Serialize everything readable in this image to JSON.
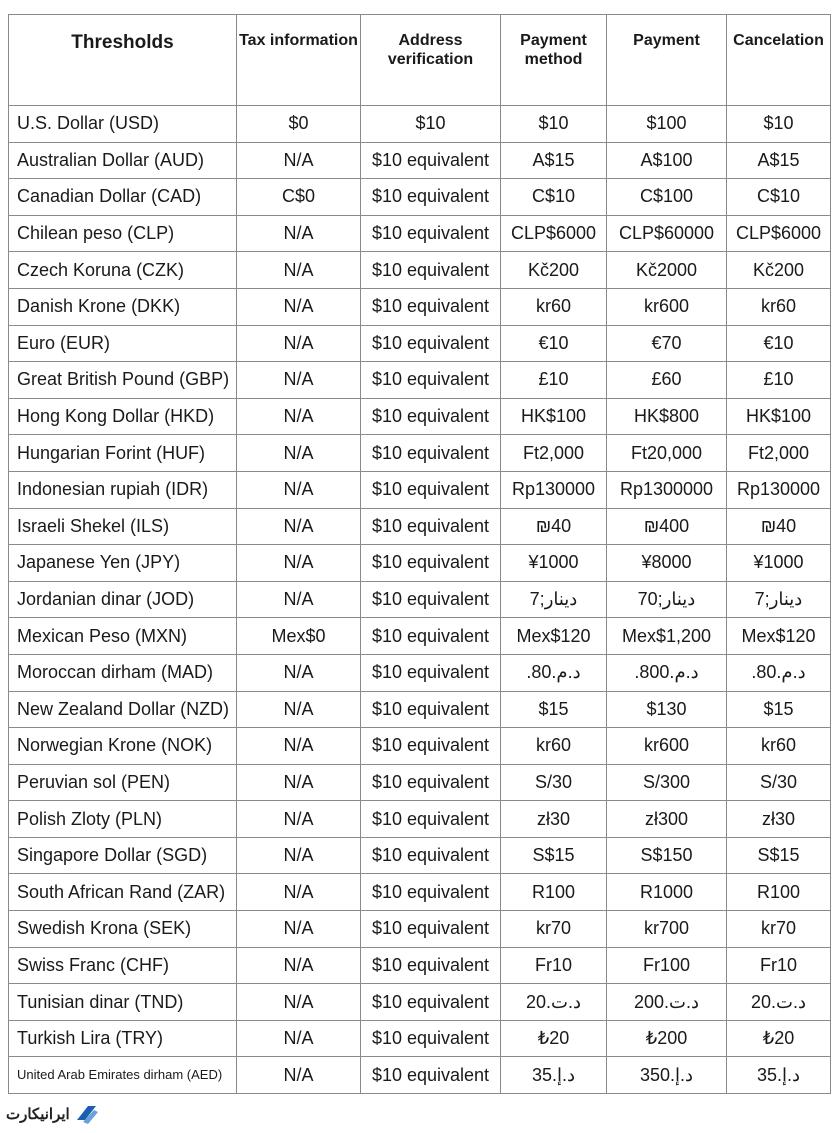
{
  "headers": [
    "Thresholds",
    "Tax information",
    "Address verification",
    "Payment method",
    "Payment",
    "Cancelation"
  ],
  "rows": [
    [
      "U.S. Dollar (USD)",
      "$0",
      "$10",
      "$10",
      "$100",
      "$10"
    ],
    [
      "Australian Dollar (AUD)",
      "N/A",
      "$10 equivalent",
      "A$15",
      "A$100",
      "A$15"
    ],
    [
      "Canadian Dollar (CAD)",
      "C$0",
      "$10 equivalent",
      "C$10",
      "C$100",
      "C$10"
    ],
    [
      "Chilean peso (CLP)",
      "N/A",
      "$10 equivalent",
      "CLP$6000",
      "CLP$60000",
      "CLP$6000"
    ],
    [
      "Czech Koruna (CZK)",
      "N/A",
      "$10 equivalent",
      "Kč200",
      "Kč2000",
      "Kč200"
    ],
    [
      "Danish Krone (DKK)",
      "N/A",
      "$10 equivalent",
      "kr60",
      "kr600",
      "kr60"
    ],
    [
      "Euro (EUR)",
      "N/A",
      "$10 equivalent",
      "€10",
      "€70",
      "€10"
    ],
    [
      "Great British Pound (GBP)",
      "N/A",
      "$10 equivalent",
      "£10",
      "£60",
      "£10"
    ],
    [
      "Hong Kong Dollar (HKD)",
      "N/A",
      "$10 equivalent",
      "HK$100",
      "HK$800",
      "HK$100"
    ],
    [
      "Hungarian Forint (HUF)",
      "N/A",
      "$10 equivalent",
      "Ft2,000",
      "Ft20,000",
      "Ft2,000"
    ],
    [
      "Indonesian rupiah (IDR)",
      "N/A",
      "$10 equivalent",
      "Rp130000",
      "Rp1300000",
      "Rp130000"
    ],
    [
      "Israeli Shekel (ILS)",
      "N/A",
      "$10 equivalent",
      "₪40",
      "₪400",
      "₪40"
    ],
    [
      "Japanese Yen (JPY)",
      "N/A",
      "$10 equivalent",
      "¥1000",
      "¥8000",
      "¥1000"
    ],
    [
      "Jordanian dinar (JOD)",
      "N/A",
      "$10 equivalent",
      "7;دينار",
      "70;دينار",
      "7;دينار"
    ],
    [
      "Mexican Peso (MXN)",
      "Mex$0",
      "$10 equivalent",
      "Mex$120",
      "Mex$1,200",
      "Mex$120"
    ],
    [
      "Moroccan dirham (MAD)",
      "N/A",
      "$10 equivalent",
      ".80.د.م",
      ".800.د.م",
      ".80.د.م"
    ],
    [
      "New Zealand Dollar (NZD)",
      "N/A",
      "$10 equivalent",
      "$15",
      "$130",
      "$15"
    ],
    [
      "Norwegian Krone (NOK)",
      "N/A",
      "$10 equivalent",
      "kr60",
      "kr600",
      "kr60"
    ],
    [
      "Peruvian sol (PEN)",
      "N/A",
      "$10 equivalent",
      "S/30",
      "S/300",
      "S/30"
    ],
    [
      "Polish Zloty (PLN)",
      "N/A",
      "$10 equivalent",
      "zł30",
      "zł300",
      "zł30"
    ],
    [
      "Singapore Dollar (SGD)",
      "N/A",
      "$10 equivalent",
      "S$15",
      "S$150",
      "S$15"
    ],
    [
      "South African Rand (ZAR)",
      "N/A",
      "$10 equivalent",
      "R100",
      "R1000",
      "R100"
    ],
    [
      "Swedish Krona (SEK)",
      "N/A",
      "$10 equivalent",
      "kr70",
      "kr700",
      "kr70"
    ],
    [
      "Swiss Franc (CHF)",
      "N/A",
      "$10 equivalent",
      "Fr10",
      "Fr100",
      "Fr10"
    ],
    [
      "Tunisian dinar (TND)",
      "N/A",
      "$10 equivalent",
      "20.د.ت",
      "200.د.ت",
      "20.د.ت"
    ],
    [
      "Turkish Lira (TRY)",
      "N/A",
      "$10 equivalent",
      "₺20",
      "₺200",
      "₺20"
    ],
    [
      "United Arab Emirates dirham (AED)",
      "N/A",
      "$10 equivalent",
      "35.د.إ",
      "350.د.إ",
      "35.د.إ"
    ]
  ],
  "logo": {
    "text": "ایرانیکارت",
    "icon": "iranicard-logo-icon",
    "accent": "#1b5fb0"
  }
}
